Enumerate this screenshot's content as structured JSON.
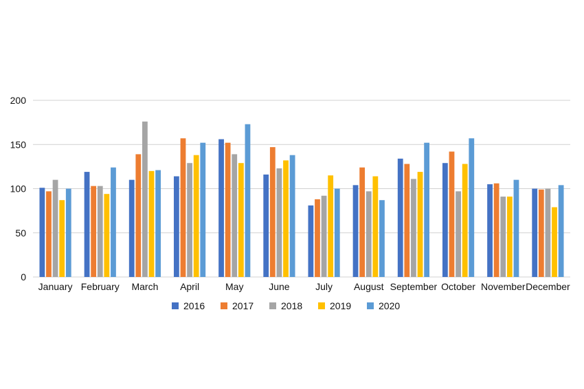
{
  "chart_data": {
    "type": "bar",
    "title": "",
    "xlabel": "",
    "ylabel": "",
    "ylim": [
      0,
      200
    ],
    "yticks": [
      0,
      50,
      100,
      150,
      200
    ],
    "grid": true,
    "legend_position": "bottom",
    "categories": [
      "January",
      "February",
      "March",
      "April",
      "May",
      "June",
      "July",
      "August",
      "September",
      "October",
      "November",
      "December"
    ],
    "series": [
      {
        "name": "2016",
        "color": "#4472C4",
        "values": [
          101,
          119,
          110,
          114,
          156,
          116,
          81,
          104,
          134,
          129,
          105,
          100
        ]
      },
      {
        "name": "2017",
        "color": "#ED7D31",
        "values": [
          97,
          103,
          139,
          157,
          152,
          147,
          88,
          124,
          128,
          142,
          106,
          99
        ]
      },
      {
        "name": "2018",
        "color": "#A5A5A5",
        "values": [
          110,
          103,
          176,
          129,
          139,
          123,
          92,
          97,
          111,
          97,
          91,
          100
        ]
      },
      {
        "name": "2019",
        "color": "#FFC000",
        "values": [
          87,
          94,
          120,
          138,
          129,
          132,
          115,
          114,
          119,
          128,
          91,
          79
        ]
      },
      {
        "name": "2020",
        "color": "#5B9BD5",
        "values": [
          100,
          124,
          121,
          152,
          173,
          138,
          100,
          87,
          152,
          157,
          110,
          104
        ]
      }
    ]
  }
}
